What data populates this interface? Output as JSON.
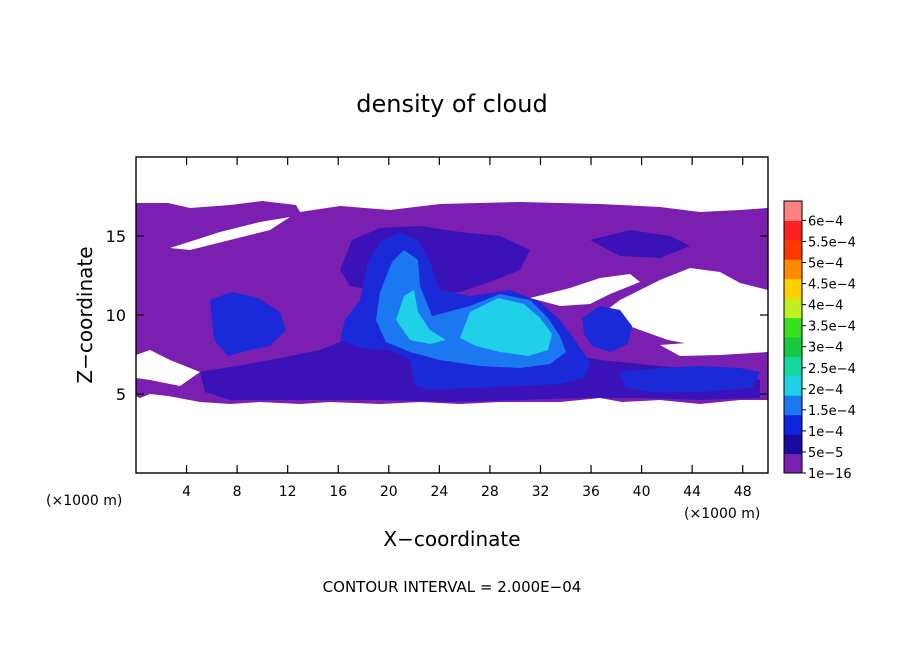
{
  "chart_data": {
    "type": "heatmap",
    "title": "density of cloud",
    "xlabel": "X−coordinate",
    "ylabel": "Z−coordinate",
    "x_unit_left": "(×1000 m)",
    "x_unit_right": "(×1000 m)",
    "xlim": [
      0,
      50
    ],
    "ylim": [
      0,
      20
    ],
    "xticks": [
      4,
      8,
      12,
      16,
      20,
      24,
      28,
      32,
      36,
      40,
      44,
      48
    ],
    "yticks": [
      5,
      10,
      15
    ],
    "footer": "CONTOUR INTERVAL = 2.000E−04",
    "colorbar": {
      "labels": [
        "1e−16",
        "5e−5",
        "1e−4",
        "1.5e−4",
        "2e−4",
        "2.5e−4",
        "3e−4",
        "3.5e−4",
        "4e−4",
        "4.5e−4",
        "5e−4",
        "5.5e−4",
        "6e−4"
      ],
      "colors": [
        "#7a1fb0",
        "#1a0aa0",
        "#0f24e0",
        "#1c78f0",
        "#1fd0e8",
        "#10d8a0",
        "#18c840",
        "#38e020",
        "#c0f020",
        "#ffd000",
        "#ff8a00",
        "#ff3800",
        "#ff2020",
        "#ff8080"
      ]
    },
    "region_levels": {
      "background": "#7a1fb0",
      "low": "#3a12b8",
      "mid": "#1a2ad8",
      "high": "#1c78f0",
      "peak": "#1fd0e8"
    }
  }
}
